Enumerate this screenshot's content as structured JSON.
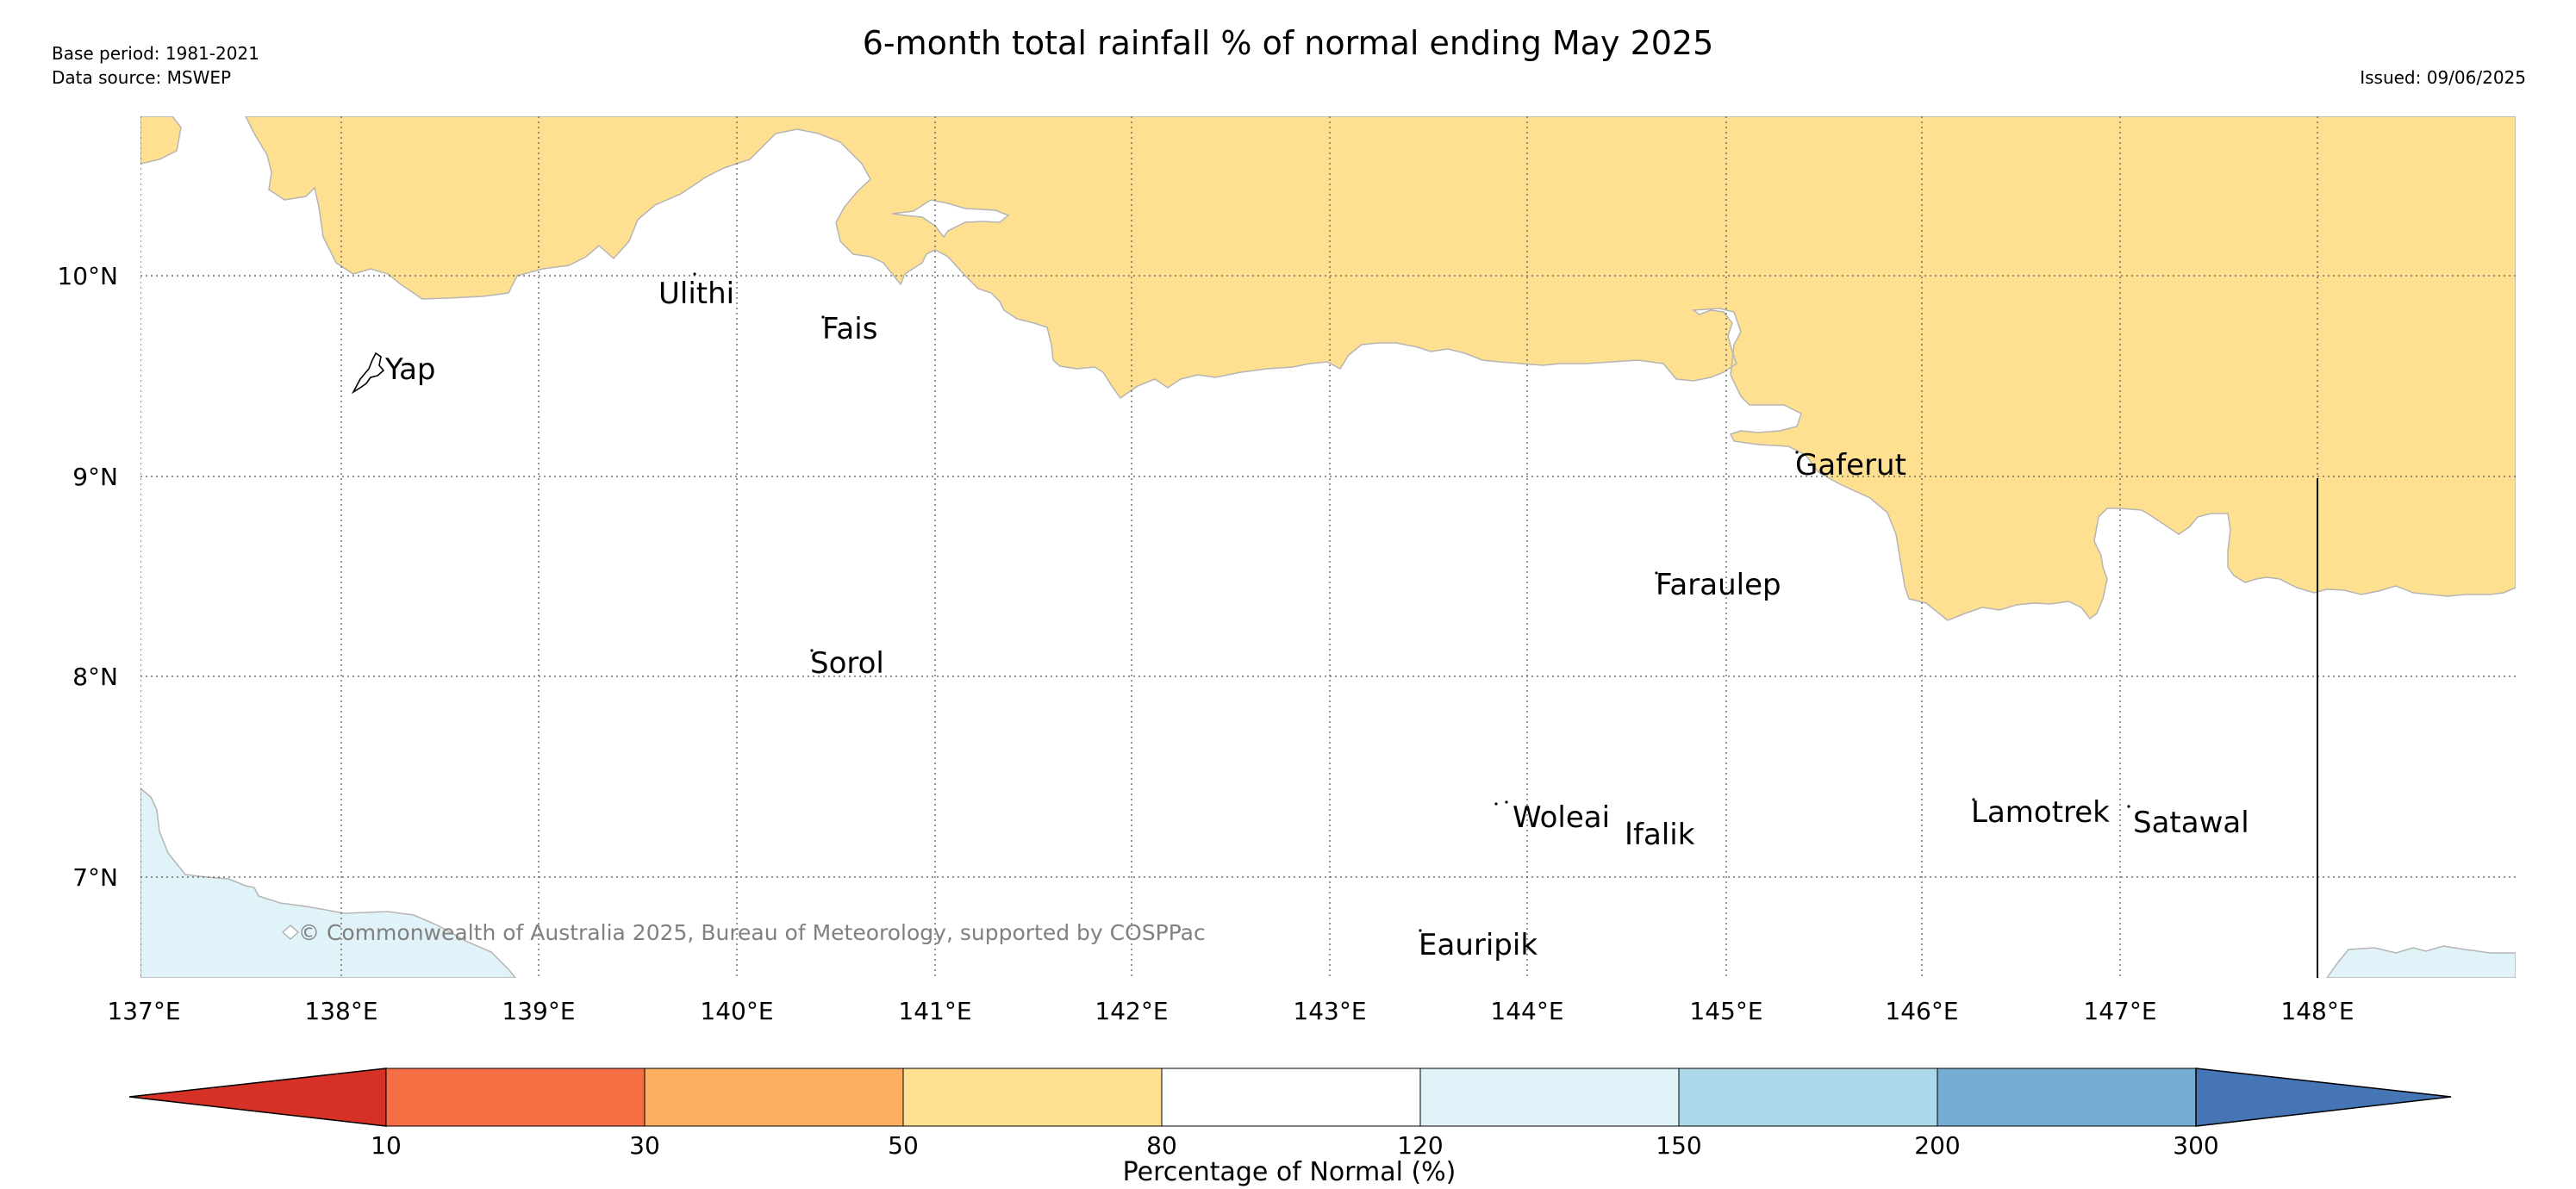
{
  "header": {
    "title": "6-month total rainfall % of normal ending May 2025",
    "base_period": "Base period: 1981-2021",
    "data_source": "Data source: MSWEP",
    "issued": "Issued: 09/06/2025"
  },
  "map": {
    "lat_labels": [
      "10°N",
      "9°N",
      "8°N",
      "7°N"
    ],
    "lon_labels": [
      "137°E",
      "138°E",
      "139°E",
      "140°E",
      "141°E",
      "142°E",
      "143°E",
      "144°E",
      "145°E",
      "146°E",
      "147°E",
      "148°E"
    ],
    "places": [
      "Yap",
      "Ulithi",
      "Fais",
      "Gaferut",
      "Faraulep",
      "Sorol",
      "Woleai",
      "Ifalik",
      "Lamotrek",
      "Satawal",
      "Eauripik"
    ],
    "copyright": "© Commonwealth of Australia 2025, Bureau of Meteorology, supported by COSPPac"
  },
  "colorbar": {
    "title": "Percentage of Normal (%)",
    "ticks": [
      "10",
      "30",
      "50",
      "80",
      "120",
      "150",
      "200",
      "300"
    ],
    "colors": {
      "below_10": "#d73027",
      "10_30": "#f46d43",
      "30_50": "#fdae61",
      "50_80": "#fee090",
      "80_120": "#ffffff",
      "120_150": "#e0f3f8",
      "150_200": "#abd9e9",
      "200_300": "#74add1",
      "above_300": "#4575b4"
    }
  }
}
